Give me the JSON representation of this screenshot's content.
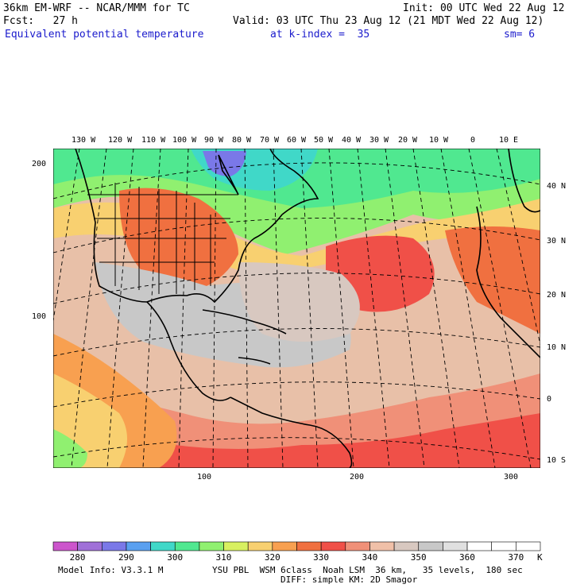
{
  "header": {
    "title": "36km EM-WRF -- NCAR/MMM for TC",
    "forecast": "Fcst:   27 h",
    "init": "Init: 00 UTC Wed 22 Aug 12",
    "valid": "Valid: 03 UTC Thu 23 Aug 12 (21 MDT Wed 22 Aug 12)",
    "field": "Equivalent potential temperature",
    "level": "at k-index =  35",
    "smoothing": "sm= 6"
  },
  "map": {
    "lon_labels": [
      "130 W",
      "120 W",
      "110 W",
      "100 W",
      "90 W",
      "80 W",
      "70 W",
      "60 W",
      "50 W",
      "40 W",
      "30 W",
      "20 W",
      "10 W",
      "0",
      "10 E"
    ],
    "lat_labels": [
      "40 N",
      "30 N",
      "20 N",
      "10 N",
      "0",
      "10 S"
    ],
    "grid_y_labels": [
      "200",
      "100"
    ],
    "grid_x_labels": [
      "100",
      "200",
      "300"
    ]
  },
  "colorbar": {
    "colors": [
      "#cc55cc",
      "#a070d8",
      "#7a78e8",
      "#5aa0f0",
      "#40d8c8",
      "#50e890",
      "#90f070",
      "#d8f060",
      "#f8d070",
      "#f8a050",
      "#f07040",
      "#f05048",
      "#f09078",
      "#f0c0a8",
      "#d8c8c0",
      "#c8c8c8",
      "#e0e0e0",
      "#ffffff",
      "#ffffff",
      "#ffffff"
    ],
    "labels": [
      "280",
      "290",
      "300",
      "310",
      "320",
      "330",
      "340",
      "350",
      "360",
      "370"
    ],
    "unit": "K"
  },
  "footer": {
    "model_info": "Model Info: V3.3.1 M",
    "physics": "YSU PBL  WSM 6class  Noah LSM  36 km,   35 levels,  180 sec",
    "diffusion": "DIFF: simple KM: 2D Smagor"
  }
}
